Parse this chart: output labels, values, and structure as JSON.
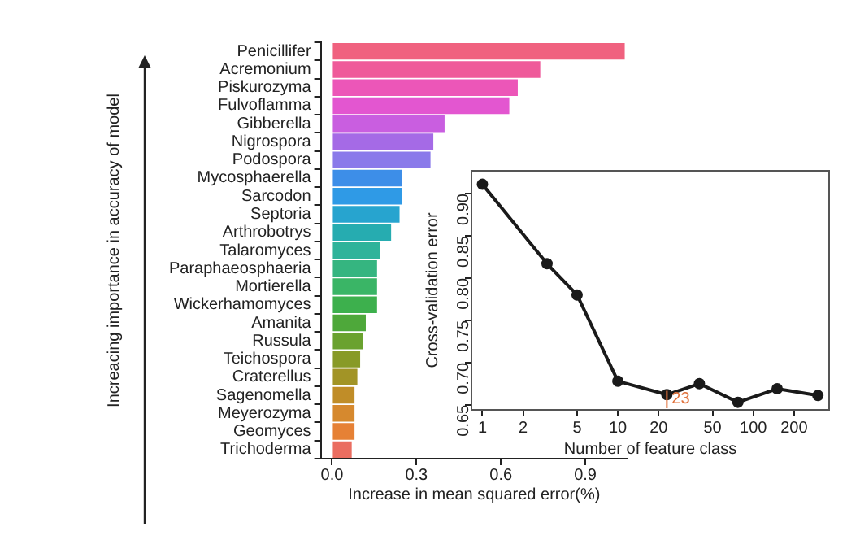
{
  "chart_data": [
    {
      "type": "bar",
      "orientation": "horizontal",
      "xlabel": "Increase in mean squared error(%)",
      "ylabel": "Increacing importance in accuracy of model",
      "categories": [
        "Penicillifer",
        "Acremonium",
        "Piskurozyma",
        "Fulvoflamma",
        "Gibberella",
        "Nigrospora",
        "Podospora",
        "Mycosphaerella",
        "Sarcodon",
        "Septoria",
        "Arthrobotrys",
        "Talaromyces",
        "Paraphaeosphaeria",
        "Mortierella",
        "Wickerhamomyces",
        "Amanita",
        "Russula",
        "Teichospora",
        "Craterellus",
        "Sagenomella",
        "Meyerozyma",
        "Geomyces",
        "Trichoderma"
      ],
      "values": [
        1.04,
        0.74,
        0.66,
        0.63,
        0.4,
        0.36,
        0.35,
        0.25,
        0.25,
        0.24,
        0.21,
        0.17,
        0.16,
        0.16,
        0.16,
        0.12,
        0.11,
        0.1,
        0.09,
        0.08,
        0.08,
        0.08,
        0.07
      ],
      "colors": [
        "#f0617f",
        "#ef5a9a",
        "#ec56b8",
        "#e356d0",
        "#c95ee0",
        "#a56ae6",
        "#8a7aea",
        "#3d8ee8",
        "#2f9ae6",
        "#27a4cf",
        "#26acb0",
        "#2fb39a",
        "#35b580",
        "#3ab566",
        "#3db04d",
        "#4ea83a",
        "#6aa22f",
        "#889a27",
        "#a29426",
        "#c08d28",
        "#d6892e",
        "#e68135",
        "#ea6d60"
      ],
      "xlim": [
        -0.04,
        1.05
      ],
      "xticks": [
        {
          "value": 0,
          "label": "0.0"
        },
        {
          "value": 0.3,
          "label": "0.3"
        },
        {
          "value": 0.6,
          "label": "0.6"
        },
        {
          "value": 0.9,
          "label": "0.9"
        }
      ]
    },
    {
      "type": "line",
      "xlabel": "Number of feature class",
      "ylabel": "Cross-validation error",
      "log": "x",
      "marker": "circle",
      "x": [
        1,
        3,
        5,
        10,
        23,
        40,
        77,
        150,
        300
      ],
      "series": [
        {
          "color": "#1a1a1a",
          "values": [
            0.911,
            0.817,
            0.78,
            0.678,
            0.662,
            0.675,
            0.653,
            0.669,
            0.661
          ]
        }
      ],
      "xlim": [
        0.83,
        363
      ],
      "xticks": [
        1,
        2,
        5,
        10,
        20,
        50,
        100,
        200
      ],
      "ylim": [
        0.644,
        0.927
      ],
      "yticks": [
        {
          "value": 0.65,
          "label": "0.65"
        },
        {
          "value": 0.7,
          "label": "0.70"
        },
        {
          "value": 0.75,
          "label": "0.75"
        },
        {
          "value": 0.8,
          "label": "0.80"
        },
        {
          "value": 0.85,
          "label": "0.85"
        },
        {
          "value": 0.9,
          "label": "0.90"
        }
      ],
      "annotations": [
        {
          "text": "23",
          "x": 23,
          "y": 0.657
        }
      ]
    }
  ]
}
